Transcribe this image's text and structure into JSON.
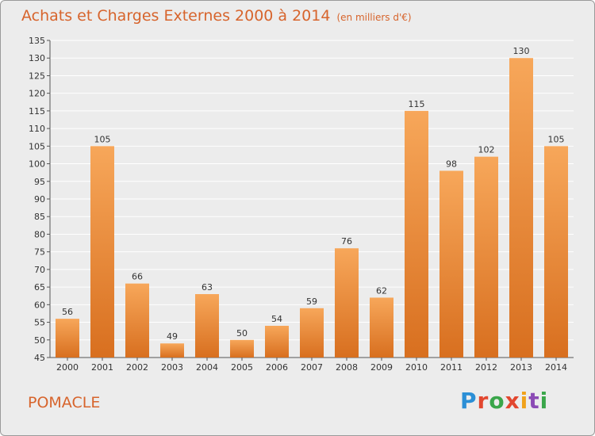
{
  "header": {
    "title": "Achats et Charges Externes 2000 à 2014",
    "unit": "(en milliers d'€)"
  },
  "footer": {
    "location": "POMACLE",
    "brand": [
      "P",
      "r",
      "o",
      "x",
      "i",
      "t",
      "i"
    ]
  },
  "colors": {
    "accent": "#d7642c",
    "bar_top": "#f7a75a",
    "bar_bottom": "#d86f1f",
    "grid": "#ffffff"
  },
  "chart_data": {
    "type": "bar",
    "title": "Achats et Charges Externes 2000 à 2014",
    "subtitle": "(en milliers d'€)",
    "categories": [
      "2000",
      "2001",
      "2002",
      "2003",
      "2004",
      "2005",
      "2006",
      "2007",
      "2008",
      "2009",
      "2010",
      "2011",
      "2012",
      "2013",
      "2014"
    ],
    "values": [
      56,
      105,
      66,
      49,
      63,
      50,
      54,
      59,
      76,
      62,
      115,
      98,
      102,
      130,
      105
    ],
    "ylim": [
      45,
      135
    ],
    "yticks": [
      45,
      50,
      55,
      60,
      65,
      70,
      75,
      80,
      85,
      90,
      95,
      100,
      105,
      110,
      115,
      120,
      125,
      130,
      135
    ],
    "grid": true,
    "legend": "none"
  }
}
